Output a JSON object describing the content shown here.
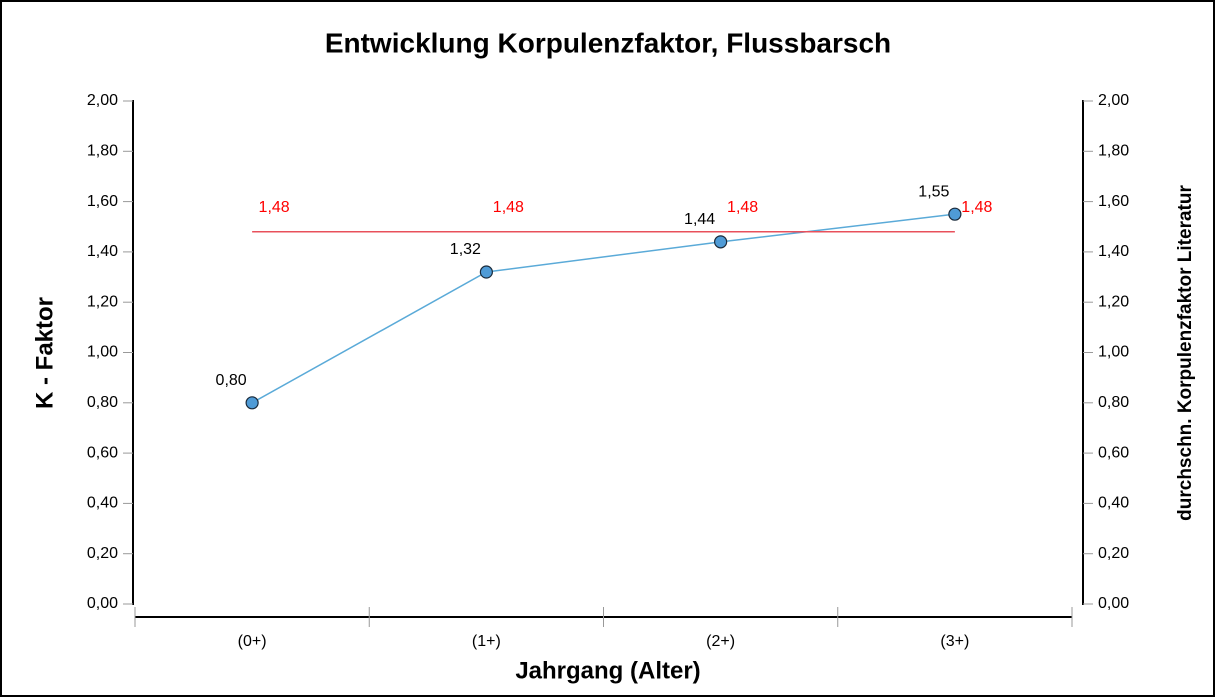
{
  "chart_data": {
    "type": "line",
    "title": "Entwicklung Korpulenzfaktor, Flussbarsch",
    "xlabel": "Jahrgang (Alter)",
    "ylabel": "K - Faktor",
    "y2label": "durchschn. Korpulenzfaktor Literatur",
    "categories": [
      "(0+)",
      "(1+)",
      "(2+)",
      "(3+)"
    ],
    "series": [
      {
        "name": "K - Faktor",
        "color": "#5aaad8",
        "marker_color": "#4f9bd6",
        "values": [
          0.8,
          1.32,
          1.44,
          1.55
        ],
        "value_labels": [
          "0,80",
          "1,32",
          "1,44",
          "1,55"
        ],
        "label_color": "#000000"
      },
      {
        "name": "durchschn. Korpulenzfaktor Literatur",
        "color": "#e8505b",
        "axis": "y2",
        "values": [
          1.48,
          1.48,
          1.48,
          1.48
        ],
        "value_labels": [
          "1,48",
          "1,48",
          "1,48",
          "1,48"
        ],
        "label_color": "#ff0000"
      }
    ],
    "ylim": [
      0,
      2
    ],
    "yticks": [
      {
        "value": 0,
        "label": "0,00"
      },
      {
        "value": 0.2,
        "label": "0,20"
      },
      {
        "value": 0.4,
        "label": "0,40"
      },
      {
        "value": 0.6,
        "label": "0,60"
      },
      {
        "value": 0.8,
        "label": "0,80"
      },
      {
        "value": 1.0,
        "label": "1,00"
      },
      {
        "value": 1.2,
        "label": "1,20"
      },
      {
        "value": 1.4,
        "label": "1,40"
      },
      {
        "value": 1.6,
        "label": "1,60"
      },
      {
        "value": 1.8,
        "label": "1,80"
      },
      {
        "value": 2.0,
        "label": "2,00"
      }
    ],
    "y2lim": [
      0,
      2
    ],
    "y2ticks": [
      {
        "value": 0,
        "label": "0,00"
      },
      {
        "value": 0.2,
        "label": "0,20"
      },
      {
        "value": 0.4,
        "label": "0,40"
      },
      {
        "value": 0.6,
        "label": "0,60"
      },
      {
        "value": 0.8,
        "label": "0,80"
      },
      {
        "value": 1.0,
        "label": "1,00"
      },
      {
        "value": 1.2,
        "label": "1,20"
      },
      {
        "value": 1.4,
        "label": "1,40"
      },
      {
        "value": 1.6,
        "label": "1,60"
      },
      {
        "value": 1.8,
        "label": "1,80"
      },
      {
        "value": 2.0,
        "label": "2,00"
      }
    ],
    "grid": false
  }
}
